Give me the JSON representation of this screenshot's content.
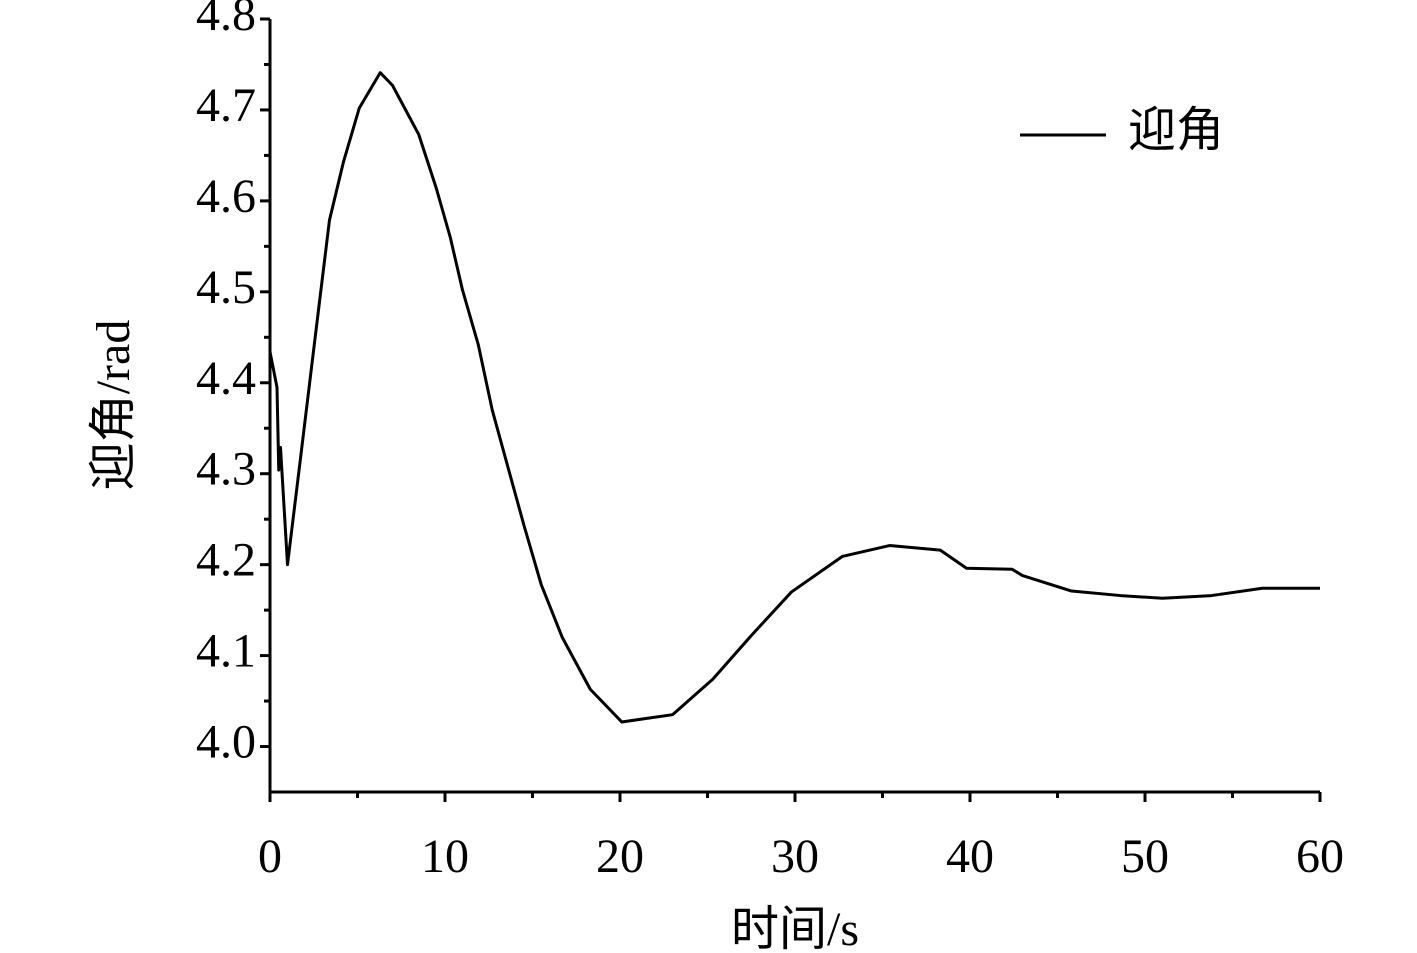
{
  "chart_data": {
    "type": "line",
    "xlabel": "时间/s",
    "ylabel": "迎角/rad",
    "x": [
      0,
      0.4,
      0.5,
      0.6,
      1.0,
      1.8,
      2.6,
      3.4,
      4.2,
      5.1,
      6.3,
      7.0,
      8.5,
      9.5,
      10.3,
      11.0,
      11.9,
      12.7,
      13.6,
      14.5,
      15.5,
      16.7,
      18.3,
      20.1,
      23.0,
      25.3,
      27.5,
      29.8,
      32.7,
      35.4,
      38.3,
      39.8,
      42.4,
      43.0,
      45.8,
      48.6,
      51.0,
      53.8,
      56.7,
      60.0
    ],
    "series": [
      {
        "name": "迎角",
        "color": "#000000",
        "values": [
          4.434,
          4.395,
          4.304,
          4.329,
          4.2,
          4.326,
          4.453,
          4.579,
          4.643,
          4.702,
          4.741,
          4.727,
          4.673,
          4.614,
          4.56,
          4.502,
          4.442,
          4.37,
          4.307,
          4.244,
          4.178,
          4.12,
          4.063,
          4.027,
          4.035,
          4.074,
          4.122,
          4.17,
          4.209,
          4.221,
          4.216,
          4.196,
          4.195,
          4.188,
          4.171,
          4.166,
          4.163,
          4.166,
          4.174,
          4.174
        ]
      }
    ],
    "xlim": [
      0,
      60
    ],
    "xticks": [
      0,
      10,
      20,
      30,
      40,
      50,
      60
    ],
    "ylim": [
      3.95,
      4.8
    ],
    "yticks": [
      {
        "value": 4,
        "label": "4.0"
      },
      4.1,
      4.2,
      4.3,
      4.4,
      4.5,
      4.6,
      4.7,
      4.8
    ],
    "minor_ticks": true,
    "grid": false,
    "legend": "upper right"
  }
}
